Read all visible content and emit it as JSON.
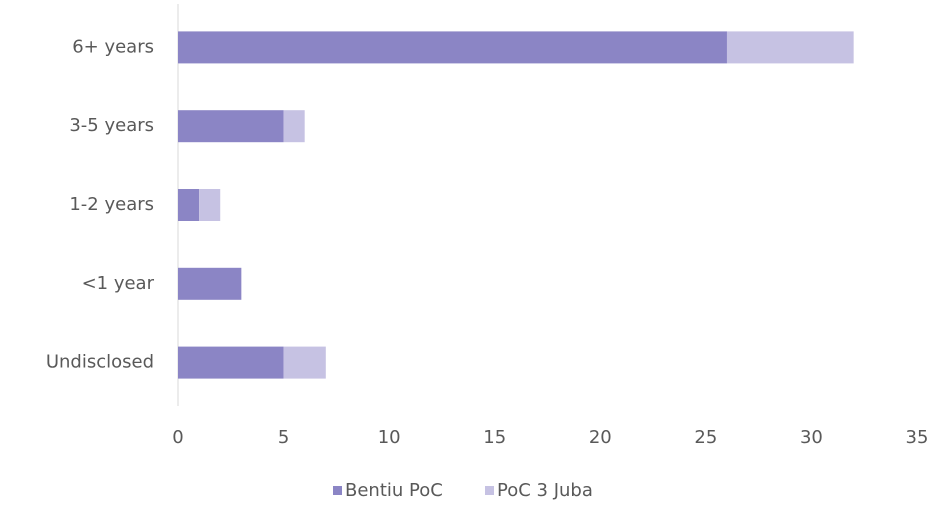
{
  "chart_data": {
    "type": "bar",
    "orientation": "horizontal",
    "stacked": true,
    "categories": [
      "6+ years",
      "3-5 years",
      "1-2 years",
      "<1 year",
      "Undisclosed"
    ],
    "series": [
      {
        "name": "Bentiu PoC",
        "color": "#8b85c5",
        "values": [
          26,
          5,
          1,
          3,
          5
        ]
      },
      {
        "name": "PoC 3 Juba",
        "color": "#c6c2e3",
        "values": [
          6,
          1,
          1,
          0,
          2
        ]
      }
    ],
    "xlim": [
      0,
      35
    ],
    "xticks": [
      0,
      5,
      10,
      15,
      20,
      25,
      30,
      35
    ],
    "grid": false,
    "legend": "bottom"
  }
}
